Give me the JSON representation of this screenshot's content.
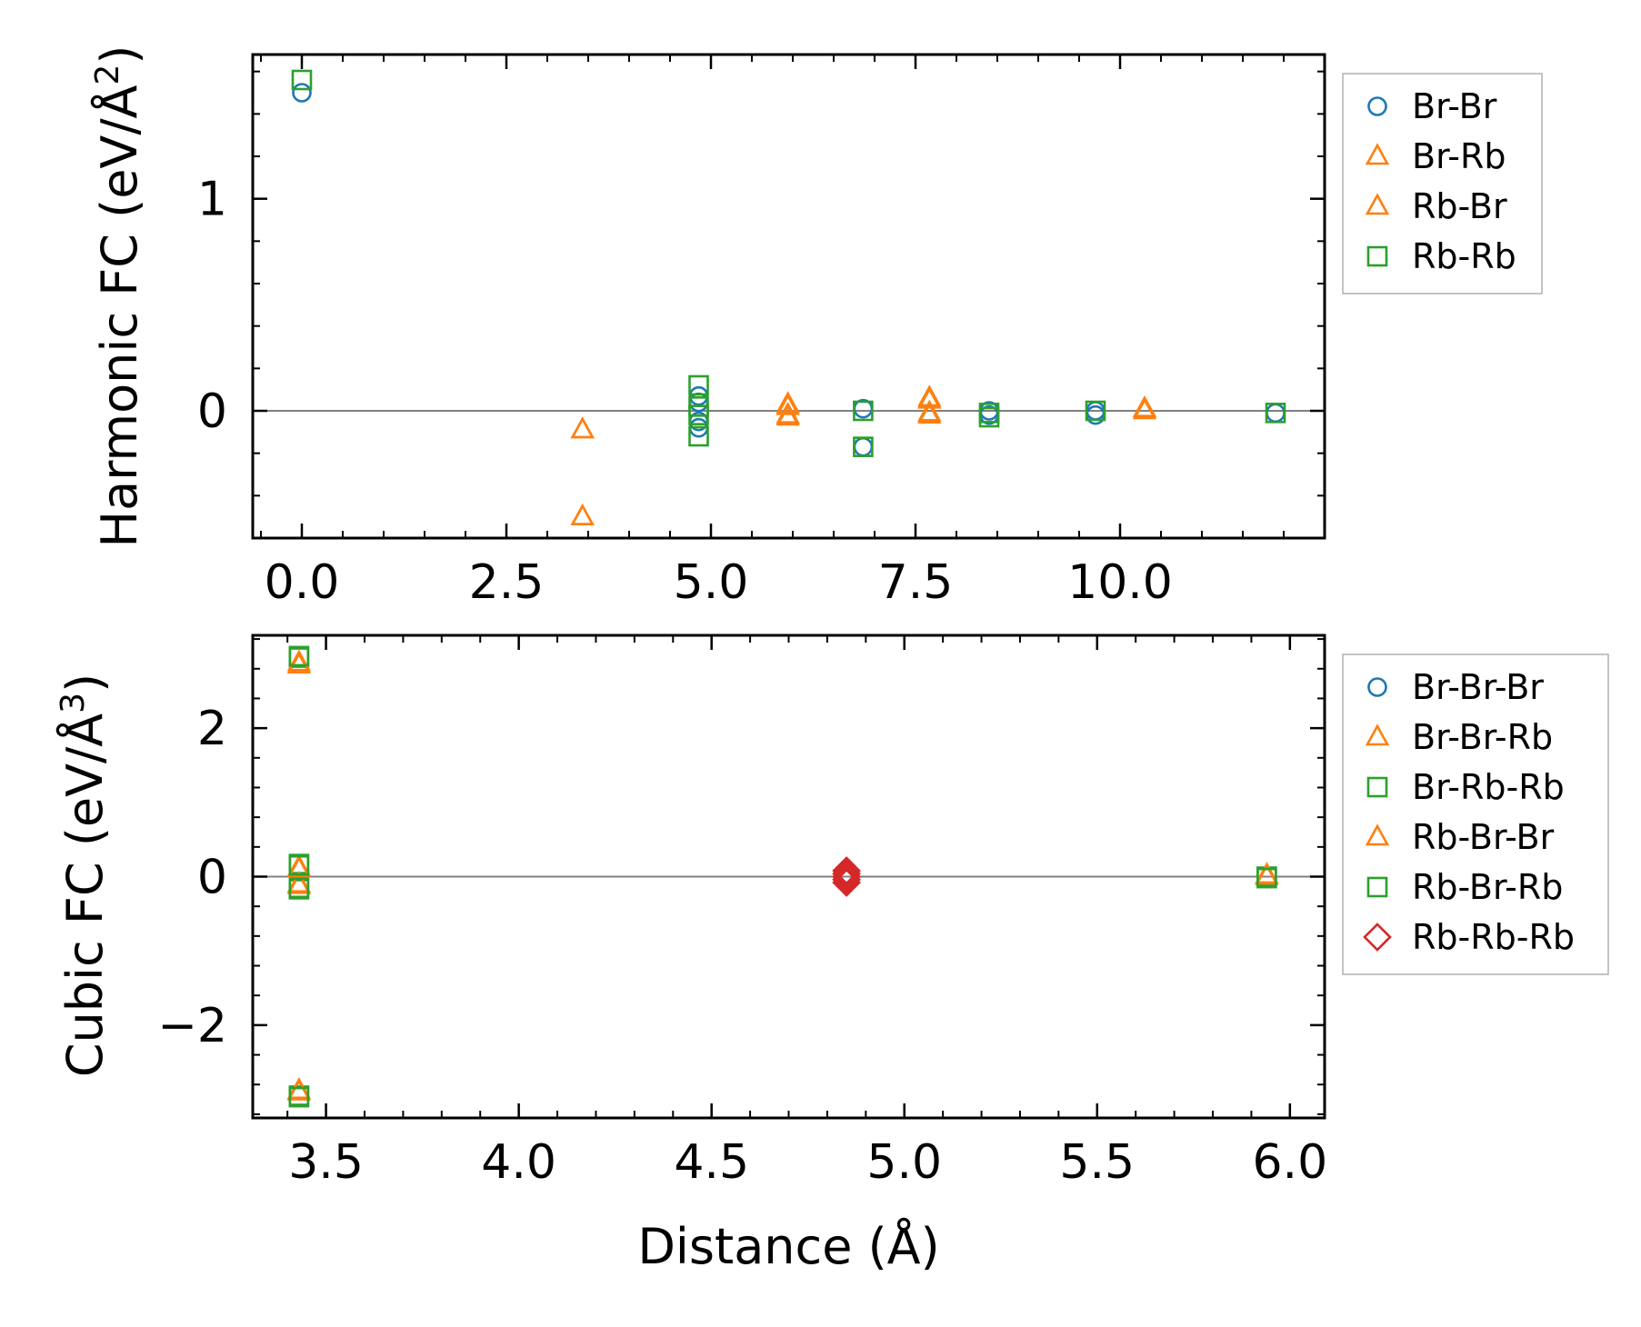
{
  "chart_data": [
    {
      "type": "scatter",
      "id": "harmonic",
      "ylabel": "Harmonic FC (eV/Å",
      "ylabel_sup": "2",
      "ylabel_end": ")",
      "xlabel": "",
      "xlim": [
        -0.6,
        12.5
      ],
      "ylim": [
        -0.6,
        1.68
      ],
      "xticks": [
        0,
        2.5,
        5,
        7.5,
        10
      ],
      "xtick_labels": [
        "0.0",
        "2.5",
        "5.0",
        "7.5",
        "10.0"
      ],
      "yticks": [
        0,
        1
      ],
      "ytick_labels": [
        "0",
        "1"
      ],
      "hline": 0,
      "series": [
        {
          "name": "Br-Br",
          "marker": "circle",
          "color": "#1f77b4",
          "points": [
            [
              0,
              1.5
            ],
            [
              4.85,
              0.07
            ],
            [
              4.85,
              0.04
            ],
            [
              4.85,
              -0.05
            ],
            [
              4.85,
              -0.08
            ],
            [
              6.86,
              0.01
            ],
            [
              6.86,
              -0.17
            ],
            [
              8.4,
              0.0
            ],
            [
              8.4,
              -0.02
            ],
            [
              9.7,
              0.0
            ],
            [
              9.7,
              -0.02
            ],
            [
              11.9,
              -0.01
            ]
          ]
        },
        {
          "name": "Br-Rb",
          "marker": "triangle",
          "color": "#ff7f0e",
          "points": [
            [
              3.43,
              -0.09
            ],
            [
              3.43,
              -0.5
            ],
            [
              5.94,
              0.03
            ],
            [
              5.94,
              -0.02
            ],
            [
              7.67,
              0.06
            ],
            [
              7.67,
              -0.01
            ],
            [
              10.3,
              0.01
            ]
          ]
        },
        {
          "name": "Rb-Br",
          "marker": "triangle",
          "color": "#ff7f0e",
          "points": [
            [
              3.43,
              -0.09
            ],
            [
              3.43,
              -0.5
            ],
            [
              5.94,
              0.02
            ],
            [
              5.94,
              -0.03
            ],
            [
              7.67,
              0.05
            ],
            [
              7.67,
              -0.02
            ],
            [
              10.3,
              0.0
            ]
          ]
        },
        {
          "name": "Rb-Rb",
          "marker": "square",
          "color": "#2ca02c",
          "points": [
            [
              0,
              1.56
            ],
            [
              4.85,
              0.12
            ],
            [
              4.85,
              0.02
            ],
            [
              4.85,
              -0.02
            ],
            [
              4.85,
              -0.12
            ],
            [
              6.86,
              0.0
            ],
            [
              6.86,
              -0.17
            ],
            [
              8.4,
              -0.01
            ],
            [
              8.4,
              -0.03
            ],
            [
              9.7,
              0.0
            ],
            [
              11.9,
              -0.01
            ]
          ]
        }
      ]
    },
    {
      "type": "scatter",
      "id": "cubic",
      "ylabel": "Cubic FC (eV/Å",
      "ylabel_sup": "3",
      "ylabel_end": ")",
      "xlabel": "Distance (Å)",
      "xlim": [
        3.31,
        6.09
      ],
      "ylim": [
        -3.25,
        3.25
      ],
      "xticks": [
        3.5,
        4.0,
        4.5,
        5.0,
        5.5,
        6.0
      ],
      "xtick_labels": [
        "3.5",
        "4.0",
        "4.5",
        "5.0",
        "5.5",
        "6.0"
      ],
      "yticks": [
        -2,
        0,
        2
      ],
      "ytick_labels": [
        "−2",
        "0",
        "2"
      ],
      "hline": 0,
      "series": [
        {
          "name": "Br-Br-Br",
          "marker": "circle",
          "color": "#1f77b4",
          "points": []
        },
        {
          "name": "Br-Br-Rb",
          "marker": "triangle",
          "color": "#ff7f0e",
          "points": [
            [
              3.43,
              2.85
            ],
            [
              3.43,
              0.12
            ],
            [
              3.43,
              -0.12
            ],
            [
              3.43,
              -2.9
            ],
            [
              5.94,
              0.0
            ]
          ]
        },
        {
          "name": "Br-Rb-Rb",
          "marker": "square",
          "color": "#2ca02c",
          "points": [
            [
              3.43,
              2.95
            ],
            [
              3.43,
              0.17
            ],
            [
              3.43,
              -0.17
            ],
            [
              3.43,
              -2.95
            ],
            [
              5.94,
              0.0
            ]
          ]
        },
        {
          "name": "Rb-Br-Br",
          "marker": "triangle",
          "color": "#ff7f0e",
          "points": [
            [
              3.43,
              2.88
            ],
            [
              3.43,
              0.1
            ],
            [
              3.43,
              -0.1
            ],
            [
              3.43,
              -2.88
            ],
            [
              5.94,
              0.02
            ]
          ]
        },
        {
          "name": "Rb-Br-Rb",
          "marker": "square",
          "color": "#2ca02c",
          "points": [
            [
              3.43,
              2.97
            ],
            [
              3.43,
              0.15
            ],
            [
              3.43,
              -0.15
            ],
            [
              3.43,
              -2.97
            ],
            [
              5.94,
              -0.02
            ]
          ]
        },
        {
          "name": "Rb-Rb-Rb",
          "marker": "diamond",
          "color": "#d62728",
          "points": [
            [
              4.85,
              0.08
            ],
            [
              4.85,
              0.04
            ],
            [
              4.85,
              0.0
            ],
            [
              4.85,
              -0.04
            ],
            [
              4.85,
              -0.08
            ]
          ]
        }
      ]
    }
  ]
}
